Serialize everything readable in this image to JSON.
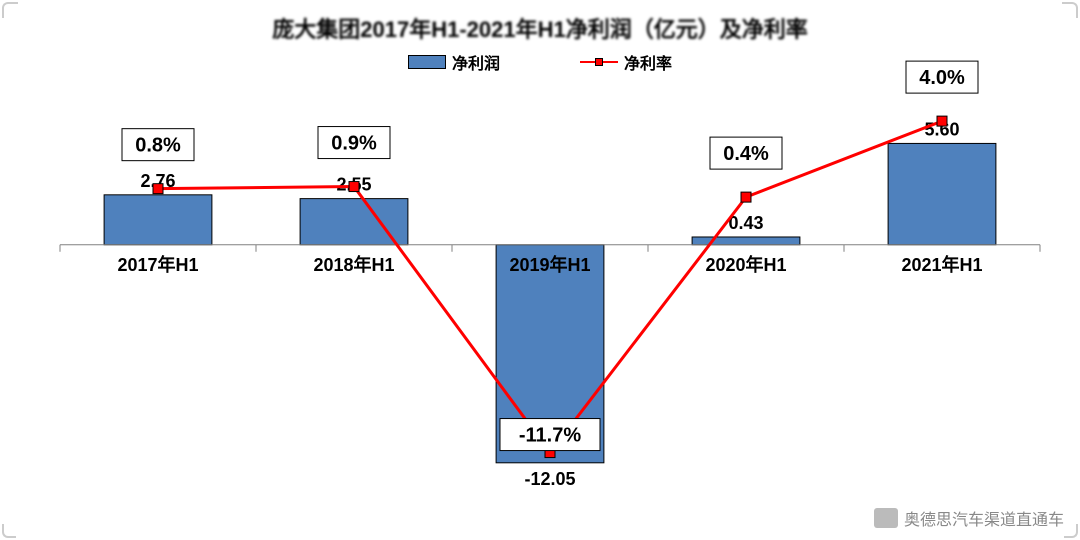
{
  "title": "庞大集团2017年H1-2021年H1净利润（亿元）及净利率",
  "title_fontsize": 22,
  "legend": {
    "bar_label": "净利润",
    "line_label": "净利率"
  },
  "chart": {
    "type": "bar+line",
    "categories": [
      "2017年H1",
      "2018年H1",
      "2019年H1",
      "2020年H1",
      "2021年H1"
    ],
    "bar_values": [
      2.76,
      2.55,
      -12.05,
      0.43,
      5.6
    ],
    "bar_value_labels": [
      "2.76",
      "2.55",
      "-12.05",
      "0.43",
      "5.60"
    ],
    "line_values": [
      0.8,
      0.9,
      -11.7,
      0.4,
      4.0
    ],
    "line_value_labels": [
      "0.8%",
      "0.9%",
      "-11.7%",
      "0.4%",
      "4.0%"
    ],
    "bar_color": "#4f81bd",
    "bar_border": "#000000",
    "line_color": "#ff0000",
    "marker_fill": "#ff0000",
    "axis_color": "#808080",
    "background_color": "#ffffff",
    "bar_ylim": [
      -13,
      8
    ],
    "line_ylim": [
      -13,
      5
    ],
    "bar_width_ratio": 0.55,
    "label_fontsize": 18,
    "rate_box_fontsize": 20
  },
  "watermark": "奥德思汽车渠道直通车"
}
